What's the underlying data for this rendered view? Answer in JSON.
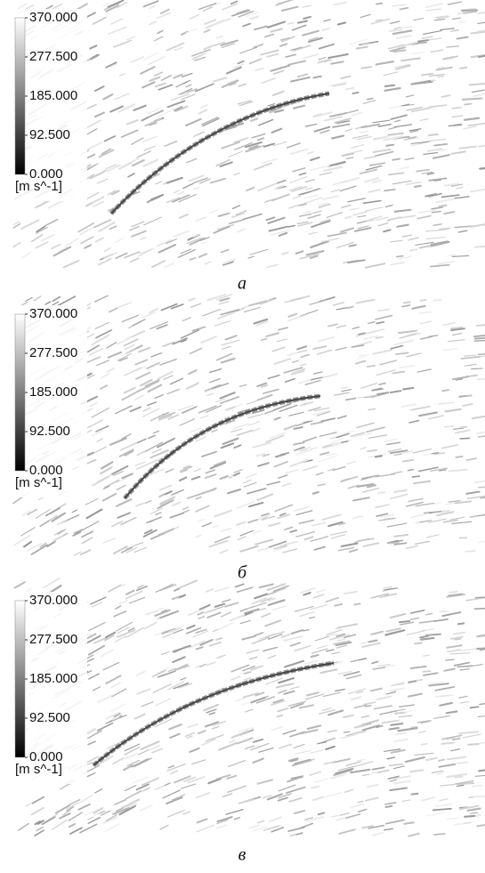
{
  "panels": [
    {
      "caption": "а",
      "unit": "[m s^-1]",
      "scale": {
        "range": [
          0,
          370
        ],
        "ticks": [
          {
            "value": 370,
            "label": "370.000"
          },
          {
            "value": 277.5,
            "label": "277.500"
          },
          {
            "value": 185,
            "label": "185.000"
          },
          {
            "value": 92.5,
            "label": "92.500"
          },
          {
            "value": 0,
            "label": "0.000"
          }
        ]
      }
    },
    {
      "caption": "б",
      "unit": "[m s^-1]",
      "scale": {
        "range": [
          0,
          370
        ],
        "ticks": [
          {
            "value": 370,
            "label": "370.000"
          },
          {
            "value": 277.5,
            "label": "277.500"
          },
          {
            "value": 185,
            "label": "185.000"
          },
          {
            "value": 92.5,
            "label": "92.500"
          },
          {
            "value": 0,
            "label": "0.000"
          }
        ]
      }
    },
    {
      "caption": "в",
      "unit": "[m s^-1]",
      "scale": {
        "range": [
          0,
          370
        ],
        "ticks": [
          {
            "value": 370,
            "label": "370.000"
          },
          {
            "value": 277.5,
            "label": "277.500"
          },
          {
            "value": 185,
            "label": "185.000"
          },
          {
            "value": 92.5,
            "label": "92.500"
          },
          {
            "value": 0,
            "label": "0.000"
          }
        ]
      }
    }
  ]
}
